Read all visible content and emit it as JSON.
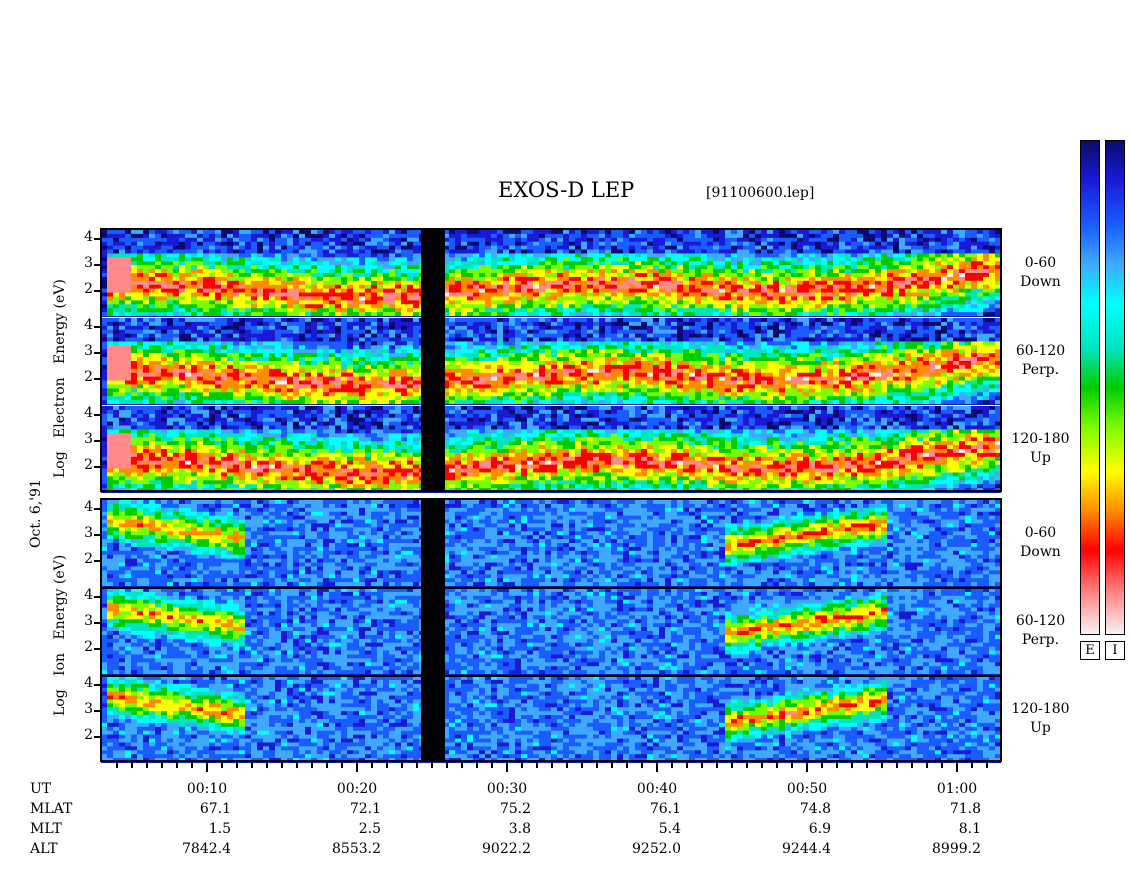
{
  "title": "EXOS-D LEP",
  "file_tag": "[91100600.lep]",
  "date_label": "Oct. 6,'91",
  "electron_axis_label": [
    "Log",
    "Electron",
    "Energy",
    "(eV)"
  ],
  "ion_axis_label": [
    "Log",
    "Ion",
    "Energy",
    "(eV)"
  ],
  "channels": [
    {
      "angle": "0-60",
      "direction": "Down"
    },
    {
      "angle": "60-120",
      "direction": "Perp."
    },
    {
      "angle": "120-180",
      "direction": "Up"
    },
    {
      "angle": "0-60",
      "direction": "Down"
    },
    {
      "angle": "60-120",
      "direction": "Perp."
    },
    {
      "angle": "120-180",
      "direction": "Up"
    }
  ],
  "y_ticks_electron": [
    "4",
    "3",
    "2"
  ],
  "y_ticks_ion": [
    "4",
    "3",
    "2"
  ],
  "colorbar_labels": [
    "E",
    "I"
  ],
  "colors": {
    "background": "#0a1f9e",
    "data_gap": "#000000",
    "colormap": [
      "#f4f4f4",
      "#ff8a8a",
      "#ff0000",
      "#ff8c00",
      "#ffff00",
      "#7cfc00",
      "#00cc00",
      "#00e5c0",
      "#00ffff",
      "#3fa9ff",
      "#1a5cff",
      "#1a1ad6",
      "#0a0a6e"
    ]
  },
  "chart_data": {
    "type": "heatmap",
    "x_axis": {
      "label": "UT",
      "ticks": [
        "00:10",
        "00:20",
        "00:30",
        "00:40",
        "00:50",
        "01:00"
      ]
    },
    "y_range_log_eV": [
      1,
      4
    ],
    "data_gap_UT": [
      "00:24",
      "00:26"
    ],
    "ephemeris": {
      "rows": [
        "UT",
        "MLAT",
        "MLT",
        "ALT"
      ],
      "UT": [
        "00:10",
        "00:20",
        "00:30",
        "00:40",
        "00:50",
        "01:00"
      ],
      "MLAT": [
        "67.1",
        "72.1",
        "75.2",
        "76.1",
        "74.8",
        "71.8"
      ],
      "MLT": [
        "1.5",
        "2.5",
        "3.8",
        "5.4",
        "6.9",
        "8.1"
      ],
      "ALT": [
        "7842.4",
        "8553.2",
        "9022.2",
        "9252.0",
        "9244.4",
        "8999.2"
      ]
    },
    "panels": [
      "Electron 0-60 Down",
      "Electron 60-120 Perp.",
      "Electron 120-180 Up",
      "Ion 0-60 Down",
      "Ion 60-120 Perp.",
      "Ion 120-180 Up"
    ]
  }
}
